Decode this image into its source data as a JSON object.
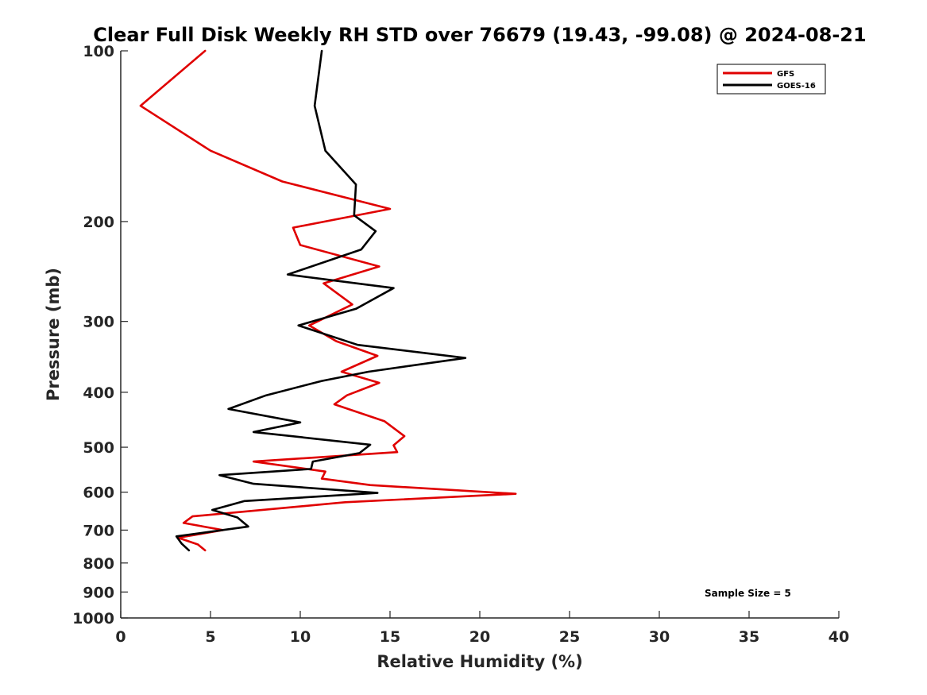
{
  "chart_data": {
    "type": "line",
    "title": "Clear Full Disk Weekly RH STD over 76679 (19.43, -99.08) @ 2024-08-21",
    "xlabel": "Relative Humidity (%)",
    "ylabel": "Pressure (mb)",
    "xlim": [
      0,
      40
    ],
    "ylim": [
      100,
      1000
    ],
    "y_scale": "log",
    "y_reversed": true,
    "x_ticks": [
      0,
      5,
      10,
      15,
      20,
      25,
      30,
      35,
      40
    ],
    "y_ticks": [
      100,
      200,
      300,
      400,
      500,
      600,
      700,
      800,
      900,
      1000
    ],
    "grid": false,
    "legend_position": "top-right",
    "annotation": "Sample Size = 5",
    "series": [
      {
        "name": "GFS",
        "color": "#e00000",
        "x": [
          4.7,
          1.1,
          5.0,
          9.0,
          15.0,
          9.6,
          10.0,
          14.4,
          11.3,
          12.9,
          10.5,
          12.0,
          14.3,
          12.3,
          14.4,
          12.6,
          11.9,
          14.7,
          15.8,
          15.2,
          15.4,
          7.4,
          11.4,
          11.2,
          13.9,
          22.0,
          12.5,
          4.0,
          3.5,
          5.7,
          3.2,
          4.3,
          4.7
        ],
        "y": [
          100,
          125,
          150,
          170,
          190,
          205,
          220,
          240,
          257,
          280,
          305,
          325,
          345,
          368,
          385,
          405,
          420,
          450,
          478,
          496,
          510,
          530,
          552,
          568,
          583,
          604,
          625,
          662,
          680,
          700,
          722,
          742,
          760
        ]
      },
      {
        "name": "GOES-16",
        "color": "#000000",
        "x": [
          11.2,
          10.8,
          11.4,
          13.1,
          13.0,
          14.2,
          13.4,
          9.3,
          15.2,
          13.1,
          9.9,
          13.2,
          19.2,
          13.8,
          11.2,
          8.1,
          6.0,
          10.0,
          7.4,
          13.9,
          13.3,
          10.7,
          10.6,
          5.5,
          7.4,
          14.3,
          6.9,
          5.1,
          6.5,
          7.1,
          3.1,
          3.4,
          3.8
        ],
        "y": [
          100,
          125,
          150,
          172,
          195,
          208,
          224,
          248,
          262,
          285,
          305,
          330,
          348,
          368,
          382,
          405,
          428,
          452,
          470,
          495,
          512,
          530,
          546,
          560,
          580,
          602,
          622,
          645,
          665,
          690,
          718,
          740,
          760
        ]
      }
    ]
  }
}
